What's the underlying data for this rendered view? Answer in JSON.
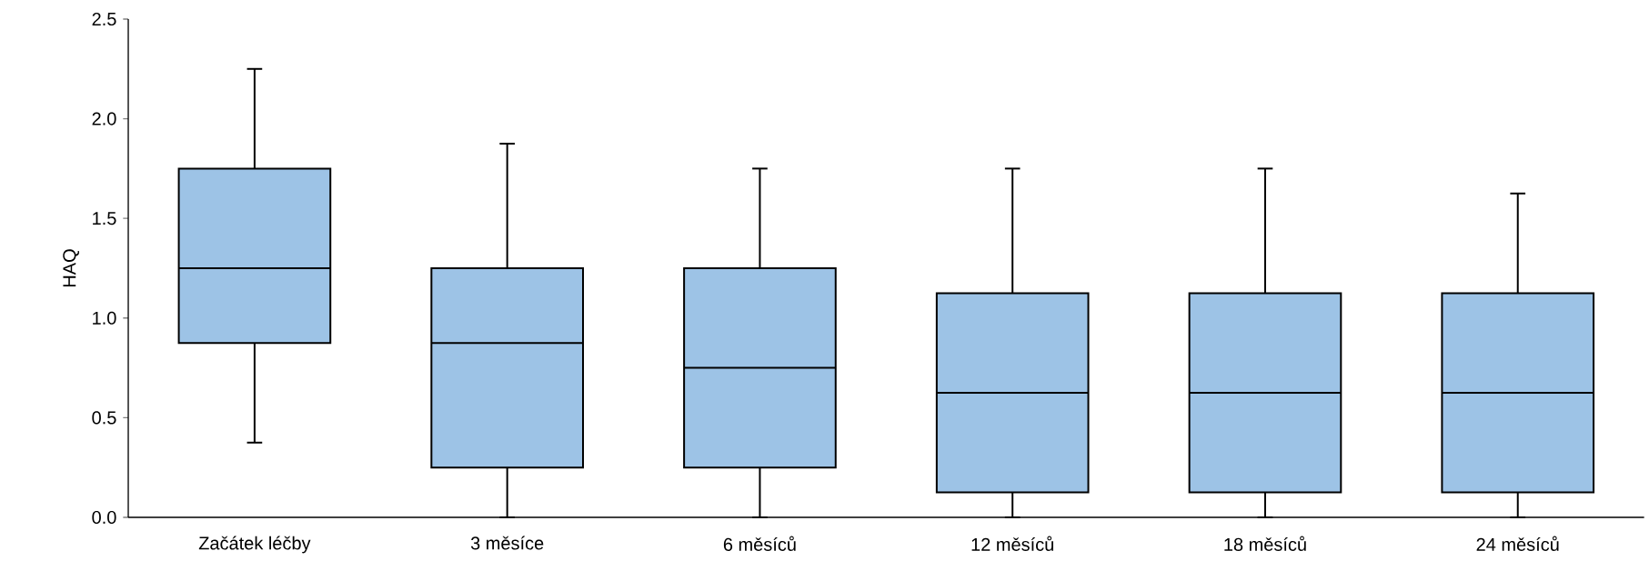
{
  "chart_data": {
    "type": "box",
    "ylabel": "HAQ",
    "color": "#9dc3e6",
    "categories": [
      "Začátek léčby",
      "3 měsíce",
      "6 měsíců",
      "12 měsíců",
      "18 měsíců",
      "24 měsíců"
    ],
    "ylim": [
      0,
      2.5
    ],
    "yticks": [
      {
        "value": 0,
        "label": "0.0"
      },
      {
        "value": 0.5,
        "label": "0.5"
      },
      {
        "value": 1,
        "label": "1.0"
      },
      {
        "value": 1.5,
        "label": "1.5"
      },
      {
        "value": 2,
        "label": "2.0"
      },
      {
        "value": 2.5,
        "label": "2.5"
      }
    ],
    "boxes": [
      {
        "low": 0.375,
        "q1": 0.875,
        "median": 1.25,
        "q3": 1.75,
        "high": 2.25
      },
      {
        "low": 0,
        "q1": 0.25,
        "median": 0.875,
        "q3": 1.25,
        "high": 1.875
      },
      {
        "low": 0,
        "q1": 0.25,
        "median": 0.75,
        "q3": 1.25,
        "high": 1.75
      },
      {
        "low": 0,
        "q1": 0.125,
        "median": 0.625,
        "q3": 1.125,
        "high": 1.75
      },
      {
        "low": 0,
        "q1": 0.125,
        "median": 0.625,
        "q3": 1.125,
        "high": 1.75
      },
      {
        "low": 0,
        "q1": 0.125,
        "median": 0.625,
        "q3": 1.125,
        "high": 1.625
      }
    ]
  }
}
